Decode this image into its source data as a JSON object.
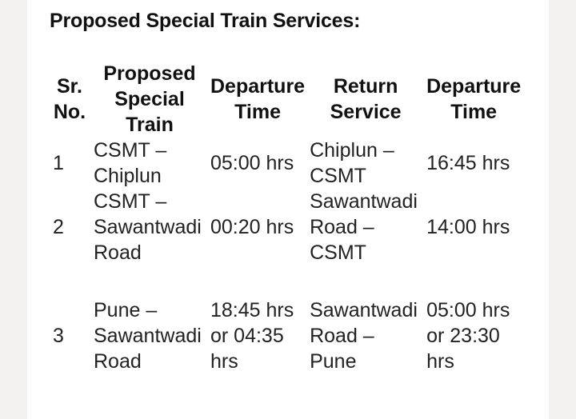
{
  "heading": "Proposed Special Train Services:",
  "table": {
    "headers": [
      "Sr. No.",
      "Proposed Special Train",
      "Departure Time",
      "Return Service",
      "Departure Time"
    ],
    "rows": [
      [
        "1",
        "CSMT – Chiplun",
        "05:00 hrs",
        "Chiplun – CSMT",
        "16:45 hrs"
      ],
      [
        "2",
        "CSMT – Sawantwadi Road",
        "00:20 hrs",
        "Sawantwadi Road – CSMT",
        "14:00 hrs"
      ],
      [
        "3",
        "Pune – Sawantwadi Road",
        "18:45 hrs or 04:35 hrs",
        "Sawantwadi Road – Pune",
        "05:00 hrs or 23:30 hrs"
      ]
    ]
  }
}
